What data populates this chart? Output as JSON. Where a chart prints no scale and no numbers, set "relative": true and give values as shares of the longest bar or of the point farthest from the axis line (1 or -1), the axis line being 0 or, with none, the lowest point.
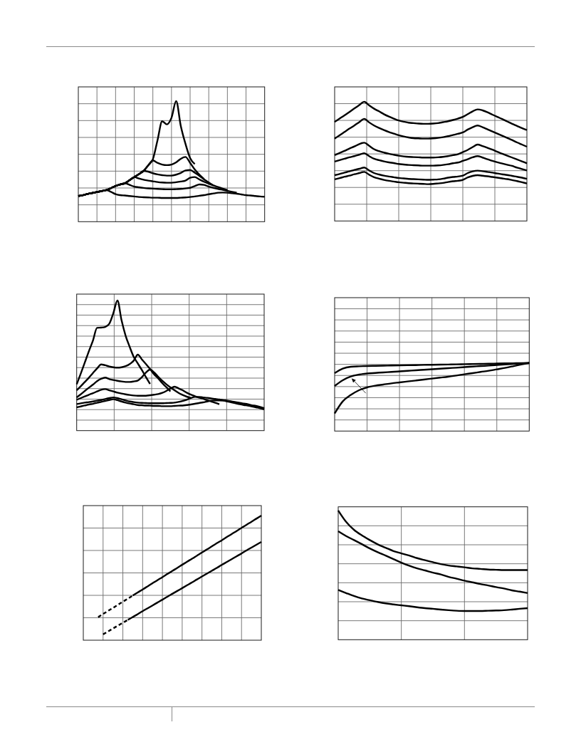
{
  "chart_data": [
    {
      "type": "line",
      "relative": true,
      "grid": true,
      "categories": [
        null,
        null,
        null,
        null,
        null,
        null,
        null,
        null,
        null,
        null,
        null,
        null,
        null,
        null,
        null,
        null,
        null,
        null,
        null,
        null,
        null,
        null,
        null,
        null,
        null,
        null,
        null,
        null,
        null,
        null,
        null,
        null,
        null,
        null,
        null,
        null,
        null,
        null,
        null,
        null,
        null
      ],
      "series": [
        {
          "color": "#000000",
          "values": [
            0.213,
            0.22,
            0.23,
            0.238,
            0.246,
            0.254,
            0.262,
            0.278,
            0.297,
            0.309,
            0.319,
            0.344,
            0.37,
            0.394,
            0.421,
            0.467,
            0.518,
            0.675,
            0.833,
            0.807,
            0.862,
            1.0,
            0.793,
            0.646,
            0.528,
            0.478,
            null,
            null,
            null,
            null,
            null,
            null,
            null,
            null,
            null,
            null,
            null,
            null,
            null,
            null,
            null
          ]
        },
        {
          "color": "#000000",
          "values": [
            0.213,
            0.22,
            0.23,
            0.238,
            0.246,
            0.254,
            0.262,
            0.278,
            0.297,
            0.309,
            0.319,
            0.344,
            0.37,
            0.394,
            0.421,
            0.467,
            0.508,
            0.488,
            0.474,
            0.469,
            0.474,
            0.492,
            0.522,
            0.537,
            0.488,
            0.433,
            0.39,
            0.354,
            null,
            null,
            null,
            null,
            null,
            null,
            null,
            null,
            null,
            null,
            null,
            null,
            null
          ]
        },
        {
          "color": "#000000",
          "values": [
            0.213,
            0.22,
            0.23,
            0.238,
            0.246,
            0.254,
            0.262,
            0.278,
            0.297,
            0.309,
            0.319,
            0.344,
            0.37,
            0.394,
            0.421,
            0.415,
            0.402,
            0.392,
            0.386,
            0.382,
            0.382,
            0.39,
            0.404,
            0.425,
            0.429,
            0.406,
            0.38,
            0.35,
            0.325,
            0.301,
            null,
            null,
            null,
            null,
            null,
            null,
            null,
            null,
            null,
            null,
            null
          ]
        },
        {
          "color": "#000000",
          "values": [
            0.213,
            0.22,
            0.23,
            0.238,
            0.246,
            0.254,
            0.262,
            0.278,
            0.297,
            0.309,
            0.319,
            0.344,
            0.37,
            0.358,
            0.348,
            0.341,
            0.335,
            0.329,
            0.325,
            0.323,
            0.323,
            0.327,
            0.333,
            0.341,
            0.364,
            0.37,
            0.35,
            0.331,
            0.315,
            0.301,
            0.287,
            0.274,
            0.262,
            null,
            null,
            null,
            null,
            null,
            null,
            null,
            null
          ]
        },
        {
          "color": "#000000",
          "values": [
            0.213,
            0.22,
            0.23,
            0.238,
            0.246,
            0.254,
            0.262,
            0.278,
            0.297,
            0.309,
            0.319,
            0.305,
            0.291,
            0.285,
            0.28,
            0.276,
            0.274,
            0.272,
            0.27,
            0.268,
            0.268,
            0.27,
            0.272,
            0.276,
            0.281,
            0.295,
            0.309,
            0.305,
            0.291,
            0.281,
            0.272,
            0.264,
            0.256,
            0.248,
            0.24,
            null,
            null,
            null,
            null,
            null,
            null
          ]
        },
        {
          "color": "#000000",
          "values": [
            0.213,
            0.22,
            0.23,
            0.238,
            0.246,
            0.254,
            0.262,
            0.248,
            0.228,
            0.22,
            0.217,
            0.213,
            0.209,
            0.205,
            0.203,
            0.201,
            0.199,
            0.199,
            0.197,
            0.197,
            0.197,
            0.197,
            0.199,
            0.201,
            0.205,
            0.209,
            0.215,
            0.22,
            0.228,
            0.234,
            0.24,
            0.242,
            0.24,
            0.236,
            0.232,
            0.226,
            0.22,
            0.217,
            0.213,
            0.209,
            0.207
          ]
        }
      ]
    },
    {
      "type": "line",
      "relative": true,
      "grid": true,
      "categories": [
        null,
        null,
        null,
        null,
        null,
        null,
        null,
        null,
        null,
        null,
        null,
        null,
        null,
        null,
        null,
        null,
        null,
        null,
        null,
        null,
        null,
        null,
        null,
        null,
        null,
        null,
        null,
        null,
        null,
        null,
        null,
        null,
        null,
        null,
        null,
        null,
        null,
        null,
        null,
        null
      ],
      "series": [
        {
          "color": "#000000",
          "values": [
            0.831,
            0.859,
            0.886,
            0.914,
            0.944,
            0.972,
            1.0,
            0.97,
            0.942,
            0.92,
            0.896,
            0.876,
            0.859,
            0.843,
            0.833,
            0.825,
            0.821,
            0.817,
            0.815,
            0.815,
            0.817,
            0.821,
            0.829,
            0.837,
            0.847,
            0.859,
            0.873,
            0.896,
            0.92,
            0.936,
            0.928,
            0.912,
            0.892,
            0.873,
            0.855,
            0.835,
            0.815,
            0.797,
            0.779,
            0.763
          ]
        },
        {
          "color": "#000000",
          "values": [
            0.691,
            0.719,
            0.747,
            0.775,
            0.801,
            0.829,
            0.857,
            0.827,
            0.801,
            0.781,
            0.763,
            0.747,
            0.733,
            0.719,
            0.709,
            0.701,
            0.695,
            0.693,
            0.691,
            0.691,
            0.693,
            0.697,
            0.703,
            0.711,
            0.721,
            0.731,
            0.743,
            0.767,
            0.787,
            0.801,
            0.787,
            0.769,
            0.751,
            0.733,
            0.715,
            0.697,
            0.679,
            0.659,
            0.641,
            0.623
          ]
        },
        {
          "color": "#000000",
          "values": [
            0.552,
            0.57,
            0.588,
            0.608,
            0.625,
            0.645,
            0.657,
            0.631,
            0.602,
            0.586,
            0.574,
            0.564,
            0.556,
            0.548,
            0.542,
            0.538,
            0.536,
            0.534,
            0.532,
            0.532,
            0.532,
            0.534,
            0.538,
            0.544,
            0.552,
            0.56,
            0.578,
            0.596,
            0.62,
            0.641,
            0.629,
            0.614,
            0.598,
            0.58,
            0.564,
            0.548,
            0.532,
            0.516,
            0.5,
            0.484
          ]
        },
        {
          "color": "#000000",
          "values": [
            0.498,
            0.51,
            0.522,
            0.534,
            0.544,
            0.556,
            0.568,
            0.544,
            0.522,
            0.51,
            0.5,
            0.492,
            0.486,
            0.478,
            0.474,
            0.47,
            0.468,
            0.466,
            0.464,
            0.464,
            0.464,
            0.466,
            0.47,
            0.476,
            0.484,
            0.49,
            0.504,
            0.518,
            0.534,
            0.544,
            0.532,
            0.518,
            0.504,
            0.492,
            0.482,
            0.472,
            0.462,
            0.448,
            0.436,
            0.424
          ]
        },
        {
          "color": "#000000",
          "values": [
            0.384,
            0.394,
            0.406,
            0.416,
            0.428,
            0.438,
            0.448,
            0.424,
            0.402,
            0.39,
            0.38,
            0.373,
            0.367,
            0.361,
            0.357,
            0.353,
            0.351,
            0.349,
            0.347,
            0.345,
            0.347,
            0.349,
            0.355,
            0.363,
            0.369,
            0.373,
            0.38,
            0.402,
            0.416,
            0.422,
            0.418,
            0.412,
            0.406,
            0.398,
            0.392,
            0.386,
            0.378,
            0.371,
            0.363,
            0.353
          ]
        },
        {
          "color": "#000000",
          "values": [
            0.349,
            0.359,
            0.371,
            0.38,
            0.392,
            0.402,
            0.412,
            0.388,
            0.367,
            0.355,
            0.345,
            0.337,
            0.331,
            0.325,
            0.321,
            0.317,
            0.315,
            0.313,
            0.311,
            0.309,
            0.311,
            0.315,
            0.319,
            0.327,
            0.333,
            0.337,
            0.345,
            0.365,
            0.378,
            0.384,
            0.38,
            0.375,
            0.369,
            0.363,
            0.357,
            0.351,
            0.343,
            0.335,
            0.325,
            0.315
          ]
        }
      ]
    },
    {
      "type": "line",
      "relative": true,
      "grid": true,
      "categories": [
        null,
        null,
        null,
        null,
        null,
        null,
        null,
        null,
        null,
        null,
        null,
        null,
        null,
        null,
        null,
        null,
        null,
        null,
        null,
        null,
        null,
        null,
        null,
        null,
        null,
        null,
        null,
        null,
        null,
        null,
        null,
        null,
        null,
        null,
        null,
        null,
        null,
        null,
        null,
        null,
        null,
        null,
        null,
        null,
        null,
        null,
        null
      ],
      "series": [
        {
          "color": "#000000",
          "values": [
            0.356,
            0.438,
            0.524,
            0.611,
            0.693,
            0.79,
            0.792,
            0.797,
            0.821,
            0.903,
            1.0,
            0.849,
            0.73,
            0.644,
            0.566,
            0.516,
            0.465,
            0.411,
            0.359,
            null,
            null,
            null,
            null,
            null,
            null,
            null,
            null,
            null,
            null,
            null,
            null,
            null,
            null,
            null,
            null,
            null,
            null,
            null,
            null,
            null,
            null,
            null,
            null,
            null,
            null,
            null,
            null
          ]
        },
        {
          "color": "#000000",
          "values": [
            0.31,
            0.341,
            0.374,
            0.407,
            0.443,
            0.478,
            0.509,
            0.502,
            0.493,
            0.487,
            0.484,
            0.487,
            0.495,
            0.511,
            0.538,
            0.584,
            0.547,
            0.511,
            0.474,
            0.432,
            0.401,
            0.365,
            0.334,
            0.301,
            null,
            null,
            null,
            null,
            null,
            null,
            null,
            null,
            null,
            null,
            null,
            null,
            null,
            null,
            null,
            null,
            null,
            null,
            null,
            null,
            null,
            null,
            null
          ]
        },
        {
          "color": "#000000",
          "values": [
            0.255,
            0.279,
            0.305,
            0.33,
            0.354,
            0.38,
            0.398,
            0.407,
            0.396,
            0.389,
            0.383,
            0.378,
            0.374,
            0.374,
            0.378,
            0.385,
            0.411,
            0.447,
            0.469,
            0.447,
            0.414,
            0.383,
            0.356,
            0.332,
            0.31,
            0.29,
            0.274,
            0.261,
            0.252,
            null,
            null,
            null,
            null,
            null,
            null,
            null,
            null,
            null,
            null,
            null,
            null,
            null,
            null,
            null,
            null,
            null,
            null
          ]
        },
        {
          "color": "#000000",
          "values": [
            0.237,
            0.25,
            0.263,
            0.276,
            0.288,
            0.301,
            0.314,
            0.319,
            0.31,
            0.301,
            0.292,
            0.285,
            0.279,
            0.274,
            0.27,
            0.268,
            0.268,
            0.268,
            0.272,
            0.276,
            0.281,
            0.29,
            0.305,
            0.323,
            0.338,
            0.325,
            0.31,
            0.292,
            0.277,
            0.265,
            0.254,
            0.245,
            0.234,
            0.224,
            0.214,
            0.203,
            null,
            null,
            null,
            null,
            null,
            null,
            null,
            null,
            null,
            null,
            null
          ]
        },
        {
          "color": "#000000",
          "values": [
            0.204,
            0.21,
            0.215,
            0.219,
            0.224,
            0.23,
            0.235,
            0.243,
            0.25,
            0.255,
            0.25,
            0.241,
            0.232,
            0.224,
            0.219,
            0.215,
            0.213,
            0.212,
            0.21,
            0.21,
            0.21,
            0.21,
            0.212,
            0.213,
            0.215,
            0.221,
            0.228,
            0.237,
            0.25,
            0.259,
            0.259,
            0.255,
            0.252,
            0.248,
            0.243,
            0.239,
            0.234,
            0.23,
            0.224,
            0.219,
            0.213,
            0.208,
            0.203,
            0.195,
            0.19,
            0.182,
            0.173
          ]
        },
        {
          "color": "#000000",
          "values": [
            0.179,
            0.186,
            0.193,
            0.201,
            0.206,
            0.214,
            0.221,
            0.228,
            0.235,
            0.241,
            0.234,
            0.224,
            0.215,
            0.208,
            0.203,
            0.197,
            0.195,
            0.193,
            0.192,
            0.19,
            0.19,
            0.188,
            0.188,
            0.188,
            0.19,
            0.192,
            0.193,
            0.197,
            0.201,
            0.206,
            0.212,
            0.217,
            0.224,
            0.23,
            0.232,
            0.232,
            0.23,
            0.224,
            0.217,
            0.21,
            0.203,
            0.197,
            0.192,
            0.186,
            0.179,
            0.172,
            0.164
          ]
        }
      ]
    },
    {
      "type": "line",
      "relative": true,
      "grid": true,
      "categories": [
        null,
        null,
        null,
        null,
        null,
        null,
        null,
        null,
        null,
        null,
        null,
        null,
        null,
        null,
        null,
        null,
        null,
        null,
        null,
        null,
        null,
        null,
        null,
        null,
        null
      ],
      "series": [
        {
          "color": "#000000",
          "values": [
            0.85,
            0.916,
            0.944,
            0.951,
            0.955,
            0.957,
            0.959,
            0.962,
            0.964,
            0.966,
            0.968,
            0.971,
            0.973,
            0.975,
            0.977,
            0.979,
            0.982,
            0.984,
            0.986,
            0.988,
            0.991,
            0.993,
            0.995,
            0.998,
            1.0
          ]
        },
        {
          "color": "#000000",
          "values": [
            0.662,
            0.746,
            0.801,
            0.829,
            0.845,
            0.853,
            0.861,
            0.868,
            0.876,
            0.884,
            0.892,
            0.899,
            0.907,
            0.915,
            0.923,
            0.93,
            0.938,
            0.946,
            0.954,
            0.961,
            0.969,
            0.977,
            0.985,
            0.992,
            1.0
          ]
        },
        {
          "color": "#000000",
          "values": [
            0.258,
            0.436,
            0.53,
            0.599,
            0.641,
            0.666,
            0.683,
            0.7,
            0.714,
            0.728,
            0.742,
            0.756,
            0.77,
            0.784,
            0.798,
            0.815,
            0.833,
            0.85,
            0.868,
            0.885,
            0.906,
            0.927,
            0.951,
            0.976,
            1.0
          ]
        }
      ]
    },
    {
      "type": "line",
      "relative": true,
      "grid": true,
      "categories": [
        null,
        null,
        null,
        null,
        null,
        null,
        null,
        null,
        null,
        null,
        null,
        null,
        null,
        null,
        null,
        null,
        null,
        null,
        null,
        null,
        null,
        null,
        null,
        null,
        null,
        null,
        null,
        null,
        null,
        null,
        null,
        null,
        null,
        null,
        null,
        null,
        null
      ],
      "series": [
        {
          "color": "#000000",
          "line_style": "dashed",
          "values": [
            null,
            null,
            null,
            0.185,
            0.21,
            0.235,
            0.259,
            0.284,
            0.309,
            0.333,
            0.358,
            null,
            null,
            null,
            null,
            null,
            null,
            null,
            null,
            null,
            null,
            null,
            null,
            null,
            null,
            null,
            null,
            null,
            null,
            null,
            null,
            null,
            null,
            null,
            null,
            null,
            null
          ]
        },
        {
          "color": "#000000",
          "line_style": "solid",
          "values": [
            null,
            null,
            null,
            null,
            null,
            null,
            null,
            null,
            null,
            null,
            0.358,
            0.383,
            0.407,
            0.432,
            0.457,
            0.482,
            0.506,
            0.531,
            0.556,
            0.58,
            0.605,
            0.63,
            0.654,
            0.679,
            0.704,
            0.728,
            0.753,
            0.778,
            0.802,
            0.827,
            0.852,
            0.876,
            0.901,
            0.926,
            0.95,
            0.975,
            1.0
          ]
        },
        {
          "color": "#000000",
          "line_style": "dashed",
          "values": [
            null,
            null,
            null,
            null,
            0.047,
            0.07,
            0.094,
            0.117,
            0.14,
            0.163,
            null,
            null,
            null,
            null,
            null,
            null,
            null,
            null,
            null,
            null,
            null,
            null,
            null,
            null,
            null,
            null,
            null,
            null,
            null,
            null,
            null,
            null,
            null,
            null,
            null,
            null,
            null
          ]
        },
        {
          "color": "#000000",
          "line_style": "solid",
          "values": [
            null,
            null,
            null,
            null,
            null,
            null,
            null,
            null,
            null,
            0.163,
            0.186,
            0.209,
            0.233,
            0.256,
            0.279,
            0.302,
            0.325,
            0.349,
            0.372,
            0.395,
            0.418,
            0.441,
            0.464,
            0.488,
            0.511,
            0.534,
            0.557,
            0.58,
            0.604,
            0.627,
            0.65,
            0.673,
            0.696,
            0.72,
            0.743,
            0.766,
            0.789
          ]
        }
      ]
    },
    {
      "type": "line",
      "relative": true,
      "grid": true,
      "categories": [
        null,
        null,
        null,
        null,
        null,
        null,
        null,
        null,
        null,
        null,
        null,
        null,
        null,
        null,
        null,
        null,
        null,
        null,
        null,
        null,
        null,
        null,
        null,
        null,
        null
      ],
      "series": [
        {
          "color": "#000000",
          "values": [
            1.0,
            0.912,
            0.85,
            0.807,
            0.771,
            0.738,
            0.712,
            0.686,
            0.668,
            0.651,
            0.631,
            0.615,
            0.6,
            0.585,
            0.574,
            0.567,
            0.56,
            0.552,
            0.548,
            0.543,
            0.541,
            0.539,
            0.539,
            0.539,
            0.539
          ]
        },
        {
          "color": "#000000",
          "values": [
            0.839,
            0.802,
            0.771,
            0.739,
            0.706,
            0.677,
            0.651,
            0.624,
            0.596,
            0.572,
            0.552,
            0.536,
            0.519,
            0.505,
            0.486,
            0.472,
            0.457,
            0.444,
            0.431,
            0.42,
            0.407,
            0.396,
            0.382,
            0.372,
            0.361
          ]
        },
        {
          "color": "#000000",
          "values": [
            0.385,
            0.361,
            0.338,
            0.319,
            0.305,
            0.292,
            0.281,
            0.273,
            0.266,
            0.259,
            0.251,
            0.244,
            0.239,
            0.233,
            0.228,
            0.224,
            0.222,
            0.222,
            0.222,
            0.224,
            0.226,
            0.228,
            0.233,
            0.239,
            0.244
          ]
        }
      ]
    }
  ]
}
